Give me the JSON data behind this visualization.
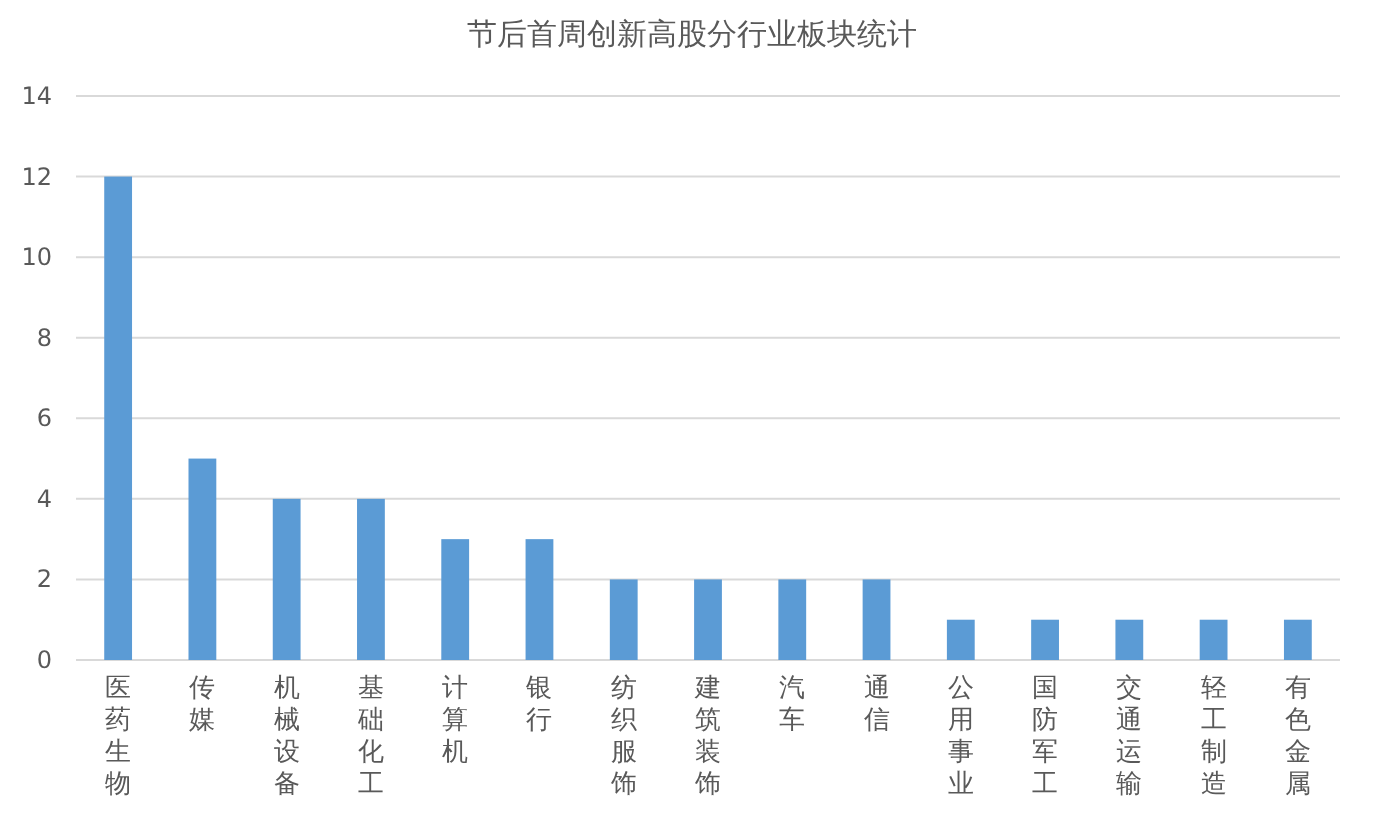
{
  "chart_data": {
    "type": "bar",
    "title": "节后首周创新高股分行业板块统计",
    "categories": [
      "医药生物",
      "传媒",
      "机械设备",
      "基础化工",
      "计算机",
      "银行",
      "纺织服饰",
      "建筑装饰",
      "汽车",
      "通信",
      "公用事业",
      "国防军工",
      "交通运输",
      "轻工制造",
      "有色金属"
    ],
    "values": [
      12,
      5,
      4,
      4,
      3,
      3,
      2,
      2,
      2,
      2,
      1,
      1,
      1,
      1,
      1
    ],
    "color": "#5b9bd5",
    "ylim": [
      0,
      14
    ],
    "yticks": [
      0,
      2,
      4,
      6,
      8,
      10,
      12,
      14
    ],
    "grid": "y"
  }
}
